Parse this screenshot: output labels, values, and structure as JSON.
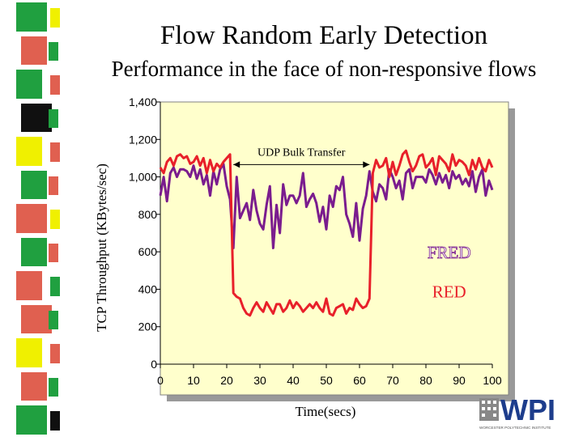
{
  "slide": {
    "title": "Flow Random Early Detection",
    "subtitle": "Performance in the face of non-responsive flows"
  },
  "side_strip": {
    "colors": [
      "#20a040",
      "#e06050",
      "#20a040",
      "#101010",
      "#f0f000",
      "#20a040",
      "#e06050",
      "#20a040",
      "#e06050",
      "#e06050",
      "#f0f000",
      "#e06050",
      "#20a040"
    ]
  },
  "logo": {
    "text": "WPI",
    "subtext": "WORCESTER POLYTECHNIC INSTITUTE",
    "color": "#1d3d8c"
  },
  "colors": {
    "plot_bg": "#ffffcc",
    "red_line": "#e8202a",
    "fred_line": "#7a1c8e",
    "shadow": "#999999"
  },
  "chart_data": {
    "type": "line",
    "title": "",
    "xlabel": "Time(secs)",
    "ylabel": "TCP Throughput (KBytes/sec)",
    "xlim": [
      0,
      100
    ],
    "ylim": [
      0,
      1400
    ],
    "x_ticks": [
      0,
      10,
      20,
      30,
      40,
      50,
      60,
      70,
      80,
      90,
      100
    ],
    "x_tick_labels": [
      "0",
      "10",
      "20",
      "30",
      "40",
      "50",
      "60",
      "70",
      "80",
      "90",
      "100"
    ],
    "y_ticks": [
      0,
      200,
      400,
      600,
      800,
      1000,
      1200,
      1400
    ],
    "y_tick_labels": [
      "0",
      "200",
      "400",
      "600",
      "800",
      "1,000",
      "1,200",
      "1,400"
    ],
    "grid": false,
    "annotations": [
      {
        "text": "UDP Bulk Transfer",
        "x_start": 22,
        "x_end": 63,
        "y": 1100
      }
    ],
    "series": [
      {
        "name": "FRED",
        "color": "#7a1c8e",
        "x": [
          0,
          1,
          2,
          3,
          4,
          5,
          6,
          7,
          8,
          9,
          10,
          11,
          12,
          13,
          14,
          15,
          16,
          17,
          18,
          19,
          20,
          21,
          22,
          23,
          24,
          25,
          26,
          27,
          28,
          29,
          30,
          31,
          32,
          33,
          34,
          35,
          36,
          37,
          38,
          39,
          40,
          41,
          42,
          43,
          44,
          45,
          46,
          47,
          48,
          49,
          50,
          51,
          52,
          53,
          54,
          55,
          56,
          57,
          58,
          59,
          60,
          61,
          62,
          63,
          64,
          65,
          66,
          67,
          68,
          69,
          70,
          71,
          72,
          73,
          74,
          75,
          76,
          77,
          78,
          79,
          80,
          81,
          82,
          83,
          84,
          85,
          86,
          87,
          88,
          89,
          90,
          91,
          92,
          93,
          94,
          95,
          96,
          97,
          98,
          99,
          100
        ],
        "values": [
          900,
          1000,
          870,
          1020,
          1050,
          1000,
          1040,
          1040,
          1030,
          1000,
          1060,
          990,
          1040,
          960,
          1010,
          900,
          1030,
          960,
          1040,
          1070,
          950,
          880,
          620,
          1000,
          780,
          820,
          860,
          770,
          930,
          820,
          750,
          720,
          850,
          950,
          620,
          850,
          700,
          960,
          850,
          900,
          900,
          860,
          900,
          1020,
          840,
          880,
          910,
          860,
          760,
          840,
          720,
          900,
          840,
          950,
          930,
          1000,
          800,
          750,
          680,
          860,
          660,
          830,
          900,
          1030,
          920,
          870,
          960,
          940,
          880,
          1040,
          1000,
          940,
          980,
          880,
          1020,
          1040,
          940,
          1000,
          1000,
          1000,
          970,
          1040,
          1010,
          960,
          1020,
          970,
          1010,
          940,
          1030,
          990,
          1010,
          960,
          990,
          950,
          1030,
          920,
          1000,
          1040,
          900,
          980,
          930
        ]
      },
      {
        "name": "RED",
        "color": "#e8202a",
        "x": [
          0,
          1,
          2,
          3,
          4,
          5,
          6,
          7,
          8,
          9,
          10,
          11,
          12,
          13,
          14,
          15,
          16,
          17,
          18,
          19,
          20,
          21,
          22,
          23,
          24,
          25,
          26,
          27,
          28,
          29,
          30,
          31,
          32,
          33,
          34,
          35,
          36,
          37,
          38,
          39,
          40,
          41,
          42,
          43,
          44,
          45,
          46,
          47,
          48,
          49,
          50,
          51,
          52,
          53,
          54,
          55,
          56,
          57,
          58,
          59,
          60,
          61,
          62,
          63,
          64,
          65,
          66,
          67,
          68,
          69,
          70,
          71,
          72,
          73,
          74,
          75,
          76,
          77,
          78,
          79,
          80,
          81,
          82,
          83,
          84,
          85,
          86,
          87,
          88,
          89,
          90,
          91,
          92,
          93,
          94,
          95,
          96,
          97,
          98,
          99,
          100
        ],
        "values": [
          1050,
          1020,
          1080,
          1100,
          1060,
          1110,
          1120,
          1100,
          1110,
          1070,
          1080,
          1110,
          1060,
          1100,
          1020,
          1090,
          1030,
          1070,
          1050,
          1080,
          1100,
          1120,
          380,
          360,
          350,
          300,
          270,
          260,
          300,
          330,
          300,
          280,
          330,
          300,
          270,
          320,
          320,
          280,
          300,
          340,
          300,
          330,
          310,
          280,
          300,
          320,
          300,
          330,
          300,
          280,
          350,
          270,
          260,
          300,
          310,
          320,
          270,
          300,
          290,
          350,
          320,
          300,
          310,
          350,
          1020,
          1090,
          1050,
          1060,
          1100,
          1000,
          1080,
          1010,
          1060,
          1120,
          1140,
          1080,
          1030,
          1060,
          1110,
          1120,
          1050,
          1070,
          1100,
          1010,
          1110,
          1090,
          1070,
          1030,
          1120,
          1060,
          1090,
          1080,
          1060,
          1010,
          1090,
          1040,
          1100,
          1050,
          1030,
          1090,
          1050
        ]
      }
    ]
  }
}
